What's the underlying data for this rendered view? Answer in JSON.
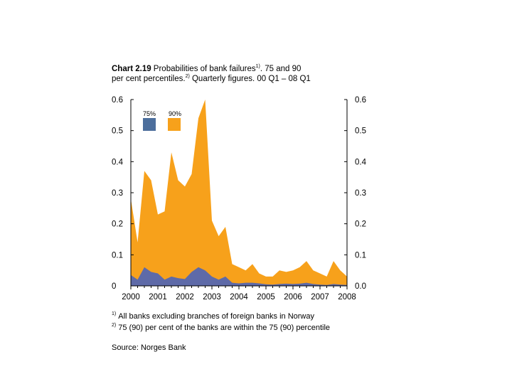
{
  "colors": {
    "p75": "#4c6e9c",
    "p90": "#f7a11b",
    "p75_lower": "#5e6aa8"
  },
  "chart_data": {
    "type": "area",
    "title_bold": "Chart 2.19",
    "title_rest": " Probabilities of bank failures",
    "title_sup1": "1)",
    "title_line1_end": ". 75 and 90",
    "title_line2_start": "per cent percentiles.",
    "title_sup2": "2)",
    "title_line2_end": " Quarterly figures. 00 Q1 – 08 Q1",
    "x_tick_labels": [
      "2000",
      "2001",
      "2002",
      "2003",
      "2004",
      "2005",
      "2006",
      "2007",
      "2008"
    ],
    "y_left_tick_labels": [
      "0",
      "0.1",
      "0.2",
      "0.3",
      "0.4",
      "0.5",
      "0.6"
    ],
    "y_right_tick_labels": [
      "0.0",
      "0.1",
      "0.2",
      "0.3",
      "0.4",
      "0.5",
      "0.6"
    ],
    "ylim": [
      0,
      0.6
    ],
    "x_start": 2000.0,
    "x_end": 2008.0,
    "series": [
      {
        "name": "75%",
        "x": [
          2000.0,
          2000.25,
          2000.5,
          2000.75,
          2001.0,
          2001.25,
          2001.5,
          2001.75,
          2002.0,
          2002.25,
          2002.5,
          2002.75,
          2003.0,
          2003.25,
          2003.5,
          2003.75,
          2004.0,
          2004.25,
          2004.5,
          2004.75,
          2005.0,
          2005.25,
          2005.5,
          2005.75,
          2006.0,
          2006.25,
          2006.5,
          2006.75,
          2007.0,
          2007.25,
          2007.5,
          2007.75,
          2008.0
        ],
        "values": [
          0.035,
          0.02,
          0.06,
          0.045,
          0.04,
          0.02,
          0.03,
          0.025,
          0.022,
          0.045,
          0.06,
          0.05,
          0.03,
          0.02,
          0.03,
          0.01,
          0.008,
          0.01,
          0.01,
          0.008,
          0.005,
          0.004,
          0.006,
          0.007,
          0.006,
          0.007,
          0.01,
          0.006,
          0.004,
          0.003,
          0.006,
          0.004,
          0.003
        ]
      },
      {
        "name": "90%",
        "x": [
          2000.0,
          2000.25,
          2000.5,
          2000.75,
          2001.0,
          2001.25,
          2001.5,
          2001.75,
          2002.0,
          2002.25,
          2002.5,
          2002.75,
          2003.0,
          2003.25,
          2003.5,
          2003.75,
          2004.0,
          2004.25,
          2004.5,
          2004.75,
          2005.0,
          2005.25,
          2005.5,
          2005.75,
          2006.0,
          2006.25,
          2006.5,
          2006.75,
          2007.0,
          2007.25,
          2007.5,
          2007.75,
          2008.0
        ],
        "values": [
          0.28,
          0.14,
          0.37,
          0.34,
          0.23,
          0.24,
          0.43,
          0.34,
          0.32,
          0.36,
          0.54,
          0.6,
          0.21,
          0.16,
          0.19,
          0.07,
          0.06,
          0.05,
          0.07,
          0.04,
          0.03,
          0.03,
          0.05,
          0.045,
          0.05,
          0.06,
          0.08,
          0.05,
          0.04,
          0.03,
          0.08,
          0.05,
          0.03
        ]
      }
    ]
  },
  "footnotes": [
    {
      "mark": "1)",
      "text": "All banks excluding branches of foreign banks in Norway"
    },
    {
      "mark": "2)",
      "text": "75 (90) per cent of the banks are within the 75 (90) percentile"
    }
  ],
  "source": "Source: Norges Bank"
}
